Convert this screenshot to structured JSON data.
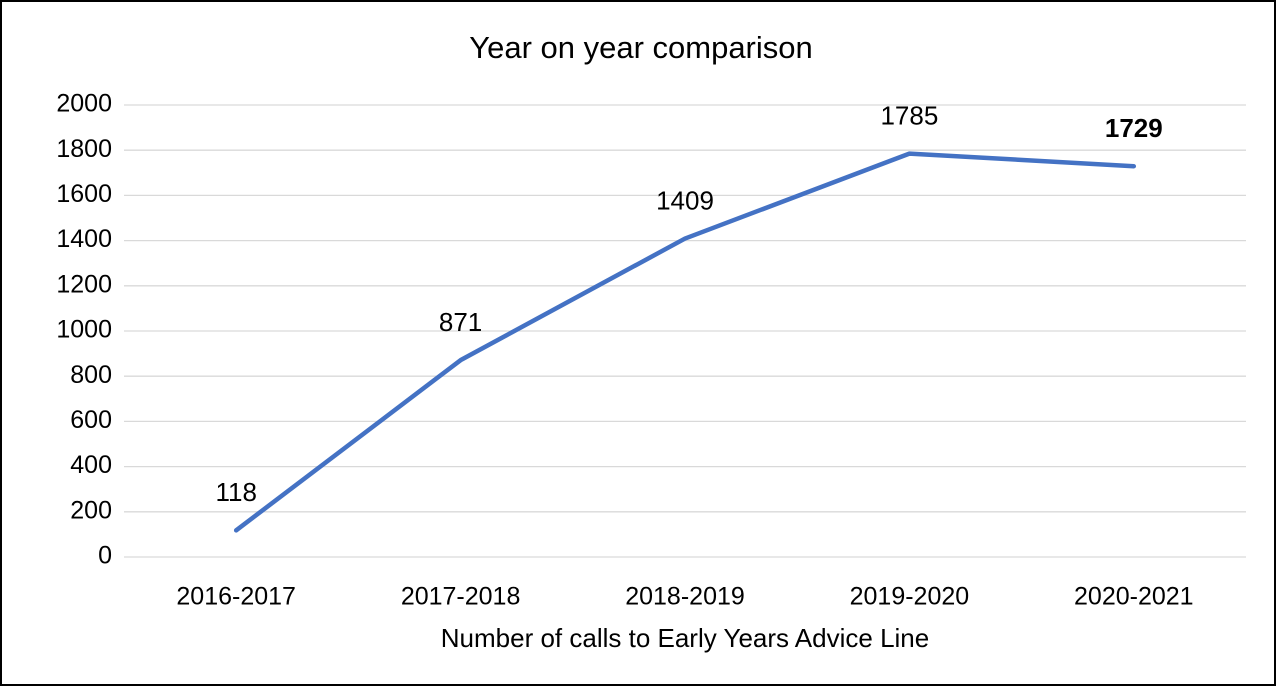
{
  "chart_data": {
    "type": "line",
    "title": "Year on year comparison",
    "x_label": "Number of calls to Early Years Advice Line",
    "categories": [
      "2016-2017",
      "2017-2018",
      "2018-2019",
      "2019-2020",
      "2020-2021"
    ],
    "series": [
      {
        "name": "Calls",
        "color": "#4472c4",
        "values": [
          118,
          871,
          1409,
          1785,
          1729
        ]
      }
    ],
    "ylim": [
      0,
      2000
    ],
    "yticks": [
      0,
      200,
      400,
      600,
      800,
      1000,
      1200,
      1400,
      1600,
      1800,
      2000
    ],
    "grid": true,
    "data_labels": true,
    "legend": false
  }
}
